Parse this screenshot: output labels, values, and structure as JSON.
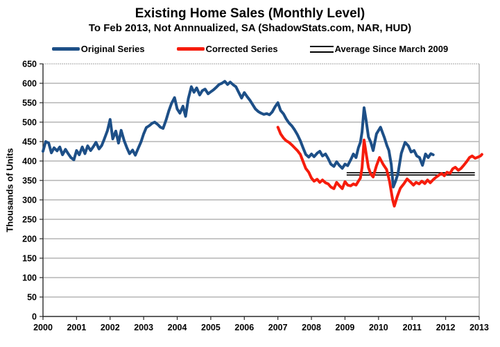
{
  "title": "Existing Home Sales (Monthly Level)",
  "subtitle": "To Feb 2013, Not Annnualized, SA (ShadowStats.com, NAR, HUD)",
  "legend": [
    {
      "label": "Original Series",
      "marker": "thick-line",
      "color": "#1d4f87"
    },
    {
      "label": "Corrected Series",
      "marker": "thick-line",
      "color": "#f61c0c"
    },
    {
      "label": "Average Since March 2009",
      "marker": "double-line",
      "color": "#000000"
    }
  ],
  "y_axis": {
    "label": "Thousands of Units"
  },
  "colors": {
    "original_series": "#1d4f87",
    "corrected_series": "#f61c0c",
    "average_line": "#000000",
    "gridline": "#8f8f8f",
    "axis": "#2a2a2a",
    "plot_border": "#b3b3b3",
    "text": "#000000"
  },
  "chart_data": {
    "type": "line",
    "title": "Existing Home Sales (Monthly Level)",
    "subtitle": "To Feb 2013, Not Annnualized, SA (ShadowStats.com, NAR, HUD)",
    "xlabel": "",
    "ylabel": "Thousands of Units",
    "xlim": [
      2000,
      2013
    ],
    "ylim": [
      0,
      650
    ],
    "ytick_step": 50,
    "grid": true,
    "legend_position": "top",
    "x_ticks": [
      "2000",
      "2001",
      "2002",
      "2003",
      "2004",
      "2005",
      "2006",
      "2007",
      "2008",
      "2009",
      "2010",
      "2011",
      "2012",
      "2013"
    ],
    "y_ticks": [
      "0",
      "50",
      "100",
      "150",
      "200",
      "250",
      "300",
      "350",
      "400",
      "450",
      "500",
      "550",
      "600",
      "650"
    ],
    "series": [
      {
        "name": "Original Series",
        "color": "#1d4f87",
        "width": 4,
        "points": [
          [
            2000.0,
            425
          ],
          [
            2000.08,
            450
          ],
          [
            2000.17,
            446
          ],
          [
            2000.25,
            421
          ],
          [
            2000.33,
            434
          ],
          [
            2000.42,
            426
          ],
          [
            2000.5,
            436
          ],
          [
            2000.58,
            416
          ],
          [
            2000.67,
            430
          ],
          [
            2000.75,
            419
          ],
          [
            2000.83,
            409
          ],
          [
            2000.92,
            403
          ],
          [
            2001.0,
            427
          ],
          [
            2001.08,
            416
          ],
          [
            2001.17,
            436
          ],
          [
            2001.25,
            419
          ],
          [
            2001.33,
            439
          ],
          [
            2001.42,
            427
          ],
          [
            2001.5,
            437
          ],
          [
            2001.58,
            448
          ],
          [
            2001.67,
            431
          ],
          [
            2001.75,
            440
          ],
          [
            2001.83,
            457
          ],
          [
            2001.92,
            478
          ],
          [
            2002.0,
            507
          ],
          [
            2002.08,
            457
          ],
          [
            2002.17,
            477
          ],
          [
            2002.25,
            446
          ],
          [
            2002.33,
            479
          ],
          [
            2002.42,
            452
          ],
          [
            2002.5,
            434
          ],
          [
            2002.58,
            419
          ],
          [
            2002.67,
            428
          ],
          [
            2002.75,
            415
          ],
          [
            2002.83,
            431
          ],
          [
            2002.92,
            449
          ],
          [
            2003.0,
            470
          ],
          [
            2003.08,
            486
          ],
          [
            2003.17,
            491
          ],
          [
            2003.25,
            497
          ],
          [
            2003.33,
            500
          ],
          [
            2003.42,
            494
          ],
          [
            2003.5,
            487
          ],
          [
            2003.58,
            484
          ],
          [
            2003.67,
            506
          ],
          [
            2003.75,
            529
          ],
          [
            2003.83,
            548
          ],
          [
            2003.92,
            563
          ],
          [
            2004.0,
            534
          ],
          [
            2004.08,
            523
          ],
          [
            2004.17,
            541
          ],
          [
            2004.25,
            515
          ],
          [
            2004.33,
            560
          ],
          [
            2004.42,
            591
          ],
          [
            2004.5,
            577
          ],
          [
            2004.58,
            588
          ],
          [
            2004.67,
            570
          ],
          [
            2004.75,
            581
          ],
          [
            2004.83,
            585
          ],
          [
            2004.92,
            573
          ],
          [
            2005.0,
            578
          ],
          [
            2005.08,
            583
          ],
          [
            2005.17,
            590
          ],
          [
            2005.25,
            597
          ],
          [
            2005.33,
            600
          ],
          [
            2005.42,
            605
          ],
          [
            2005.5,
            597
          ],
          [
            2005.58,
            603
          ],
          [
            2005.67,
            596
          ],
          [
            2005.75,
            591
          ],
          [
            2005.83,
            577
          ],
          [
            2005.92,
            562
          ],
          [
            2006.0,
            576
          ],
          [
            2006.08,
            566
          ],
          [
            2006.17,
            556
          ],
          [
            2006.25,
            545
          ],
          [
            2006.33,
            534
          ],
          [
            2006.42,
            527
          ],
          [
            2006.5,
            523
          ],
          [
            2006.58,
            520
          ],
          [
            2006.67,
            522
          ],
          [
            2006.75,
            519
          ],
          [
            2006.83,
            526
          ],
          [
            2006.92,
            540
          ],
          [
            2007.0,
            550
          ],
          [
            2007.08,
            530
          ],
          [
            2007.17,
            521
          ],
          [
            2007.25,
            508
          ],
          [
            2007.33,
            498
          ],
          [
            2007.42,
            490
          ],
          [
            2007.5,
            480
          ],
          [
            2007.58,
            468
          ],
          [
            2007.67,
            452
          ],
          [
            2007.75,
            434
          ],
          [
            2007.83,
            417
          ],
          [
            2007.92,
            410
          ],
          [
            2008.0,
            418
          ],
          [
            2008.08,
            411
          ],
          [
            2008.17,
            420
          ],
          [
            2008.25,
            425
          ],
          [
            2008.33,
            413
          ],
          [
            2008.42,
            418
          ],
          [
            2008.5,
            406
          ],
          [
            2008.58,
            392
          ],
          [
            2008.67,
            386
          ],
          [
            2008.75,
            398
          ],
          [
            2008.83,
            389
          ],
          [
            2008.92,
            381
          ],
          [
            2009.0,
            392
          ],
          [
            2009.08,
            388
          ],
          [
            2009.17,
            403
          ],
          [
            2009.25,
            418
          ],
          [
            2009.33,
            409
          ],
          [
            2009.4,
            434
          ],
          [
            2009.46,
            448
          ],
          [
            2009.51,
            475
          ],
          [
            2009.57,
            537
          ],
          [
            2009.63,
            505
          ],
          [
            2009.7,
            462
          ],
          [
            2009.77,
            448
          ],
          [
            2009.84,
            427
          ],
          [
            2009.94,
            470
          ],
          [
            2010.06,
            487
          ],
          [
            2010.17,
            461
          ],
          [
            2010.25,
            440
          ],
          [
            2010.31,
            427
          ],
          [
            2010.38,
            391
          ],
          [
            2010.44,
            333
          ],
          [
            2010.52,
            351
          ],
          [
            2010.58,
            368
          ],
          [
            2010.68,
            420
          ],
          [
            2010.79,
            448
          ],
          [
            2010.89,
            439
          ],
          [
            2010.97,
            423
          ],
          [
            2011.06,
            427
          ],
          [
            2011.14,
            413
          ],
          [
            2011.22,
            409
          ],
          [
            2011.31,
            389
          ],
          [
            2011.4,
            418
          ],
          [
            2011.48,
            409
          ],
          [
            2011.56,
            419
          ],
          [
            2011.63,
            416
          ]
        ]
      },
      {
        "name": "Corrected Series",
        "color": "#f61c0c",
        "width": 4,
        "points": [
          [
            2007.0,
            487
          ],
          [
            2007.08,
            470
          ],
          [
            2007.17,
            459
          ],
          [
            2007.25,
            452
          ],
          [
            2007.33,
            448
          ],
          [
            2007.42,
            441
          ],
          [
            2007.5,
            434
          ],
          [
            2007.58,
            427
          ],
          [
            2007.67,
            417
          ],
          [
            2007.75,
            399
          ],
          [
            2007.83,
            381
          ],
          [
            2007.92,
            371
          ],
          [
            2008.0,
            356
          ],
          [
            2008.08,
            348
          ],
          [
            2008.17,
            353
          ],
          [
            2008.25,
            345
          ],
          [
            2008.33,
            351
          ],
          [
            2008.42,
            344
          ],
          [
            2008.5,
            341
          ],
          [
            2008.58,
            333
          ],
          [
            2008.67,
            329
          ],
          [
            2008.75,
            345
          ],
          [
            2008.83,
            337
          ],
          [
            2008.92,
            329
          ],
          [
            2009.0,
            347
          ],
          [
            2009.08,
            338
          ],
          [
            2009.17,
            336
          ],
          [
            2009.25,
            341
          ],
          [
            2009.33,
            338
          ],
          [
            2009.4,
            348
          ],
          [
            2009.46,
            356
          ],
          [
            2009.51,
            383
          ],
          [
            2009.57,
            454
          ],
          [
            2009.63,
            420
          ],
          [
            2009.7,
            383
          ],
          [
            2009.77,
            366
          ],
          [
            2009.84,
            359
          ],
          [
            2009.94,
            388
          ],
          [
            2010.03,
            409
          ],
          [
            2010.14,
            391
          ],
          [
            2010.24,
            378
          ],
          [
            2010.33,
            347
          ],
          [
            2010.42,
            300
          ],
          [
            2010.47,
            284
          ],
          [
            2010.56,
            309
          ],
          [
            2010.65,
            330
          ],
          [
            2010.76,
            342
          ],
          [
            2010.85,
            354
          ],
          [
            2010.95,
            346
          ],
          [
            2011.04,
            338
          ],
          [
            2011.12,
            345
          ],
          [
            2011.21,
            341
          ],
          [
            2011.29,
            348
          ],
          [
            2011.38,
            342
          ],
          [
            2011.46,
            351
          ],
          [
            2011.54,
            344
          ],
          [
            2011.63,
            352
          ],
          [
            2011.71,
            358
          ],
          [
            2011.79,
            363
          ],
          [
            2011.88,
            368
          ],
          [
            2011.96,
            362
          ],
          [
            2012.04,
            371
          ],
          [
            2012.13,
            368
          ],
          [
            2012.21,
            380
          ],
          [
            2012.29,
            384
          ],
          [
            2012.38,
            376
          ],
          [
            2012.46,
            381
          ],
          [
            2012.54,
            389
          ],
          [
            2012.63,
            399
          ],
          [
            2012.71,
            409
          ],
          [
            2012.79,
            413
          ],
          [
            2012.88,
            407
          ],
          [
            2012.96,
            410
          ],
          [
            2013.04,
            413
          ],
          [
            2013.08,
            417
          ]
        ]
      }
    ],
    "average_line": {
      "name": "Average Since March 2009",
      "color": "#000000",
      "from_x": 2009.05,
      "to_x": 2012.87,
      "values": [
        370,
        364
      ]
    }
  }
}
